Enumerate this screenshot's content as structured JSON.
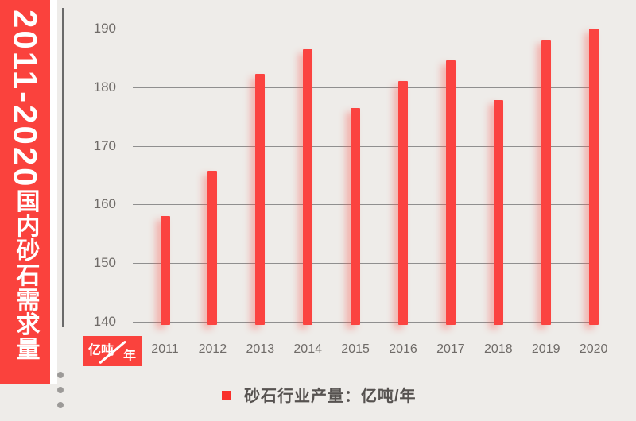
{
  "banner": {
    "title_digits": "2011-2020",
    "title_cjk": "国内砂石需求量"
  },
  "unit_badge": {
    "numerator": "亿吨",
    "denominator": "年"
  },
  "legend": {
    "label": "砂石行业产量：亿吨/年"
  },
  "colors": {
    "accent_red": "#fa423d",
    "bar_red": "#fb4340",
    "legend_red": "#f92f2a",
    "background": "#eeece9",
    "grid_gray": "#8f8f8f",
    "text_gray": "#6f6b68"
  },
  "chart_data": {
    "type": "bar",
    "title": "2011-2020国内砂石需求量",
    "series_name": "砂石行业产量",
    "ylabel": "亿吨/年",
    "categories": [
      "2011",
      "2012",
      "2013",
      "2014",
      "2015",
      "2016",
      "2017",
      "2018",
      "2019",
      "2020"
    ],
    "values": [
      158,
      165.8,
      182.3,
      186.5,
      176.4,
      181,
      184.6,
      177.8,
      188.1,
      190
    ],
    "ylim": [
      140,
      190
    ],
    "yticks": [
      140,
      150,
      160,
      170,
      180,
      190
    ],
    "grid": true,
    "legend_position": "bottom"
  }
}
